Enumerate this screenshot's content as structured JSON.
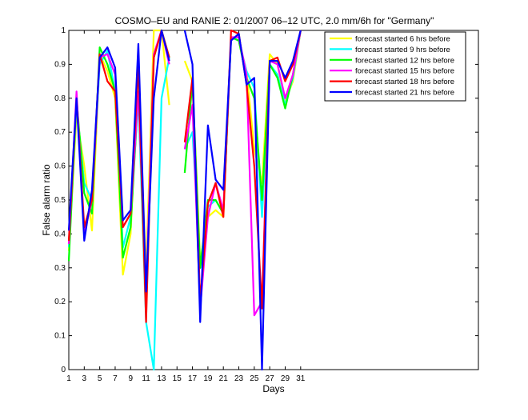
{
  "chart_data": {
    "type": "line",
    "title": "COSMO–EU and RANIE 2: 01/2007 06–12 UTC, 2.0 mm/6h for \"Germany\"",
    "xlabel": "Days",
    "ylabel": "False alarm ratio",
    "xlim": [
      1,
      54
    ],
    "ylim": [
      0,
      1
    ],
    "xticks": [
      1,
      3,
      5,
      7,
      9,
      11,
      13,
      15,
      17,
      19,
      21,
      23,
      25,
      27,
      29,
      31
    ],
    "yticks": [
      0,
      0.1,
      0.2,
      0.3,
      0.4,
      0.5,
      0.6,
      0.7,
      0.8,
      0.9,
      1
    ],
    "grid": false,
    "legend_position": "top-right",
    "series": [
      {
        "name": "forecast started 6 hrs before",
        "color": "#ffff00",
        "x": [
          1,
          2,
          3,
          4,
          5,
          6,
          7,
          8,
          9,
          10,
          11,
          12,
          13,
          14,
          16,
          17,
          18,
          19,
          20,
          21,
          22,
          23,
          24,
          25,
          26,
          27,
          28,
          29,
          30,
          31
        ],
        "y": [
          0.35,
          0.75,
          0.6,
          0.41,
          0.93,
          0.88,
          0.8,
          0.28,
          0.4,
          0.88,
          0.28,
          1.0,
          1.0,
          0.78,
          0.91,
          0.85,
          0.32,
          0.45,
          0.47,
          0.45,
          0.98,
          0.97,
          0.88,
          0.65,
          0.55,
          0.93,
          0.9,
          0.79,
          0.85,
          1.0
        ]
      },
      {
        "name": "forecast started 9 hrs before",
        "color": "#00ffff",
        "x": [
          1,
          2,
          3,
          4,
          5,
          6,
          7,
          8,
          9,
          10,
          11,
          12,
          13,
          14,
          16,
          17,
          18,
          19,
          20,
          21,
          22,
          23,
          24,
          25,
          26,
          27,
          28,
          29,
          30,
          31
        ],
        "y": [
          0.36,
          0.78,
          0.55,
          0.5,
          0.9,
          0.94,
          0.82,
          0.36,
          0.45,
          0.8,
          0.14,
          0.0,
          0.8,
          0.92,
          0.65,
          0.7,
          0.3,
          0.48,
          0.5,
          0.46,
          0.98,
          0.97,
          0.88,
          0.83,
          0.45,
          0.9,
          0.87,
          0.78,
          0.86,
          1.0
        ]
      },
      {
        "name": "forecast started 12 hrs before",
        "color": "#00ff00",
        "x": [
          1,
          2,
          3,
          4,
          5,
          6,
          7,
          8,
          9,
          10,
          11,
          12,
          13,
          14,
          16,
          17,
          18,
          19,
          20,
          21,
          22,
          23,
          24,
          25,
          26,
          27,
          28,
          29,
          30,
          31
        ],
        "y": [
          0.32,
          0.8,
          0.52,
          0.46,
          0.95,
          0.9,
          0.82,
          0.33,
          0.42,
          0.82,
          0.2,
          0.92,
          1.0,
          0.92,
          0.58,
          0.85,
          0.3,
          0.5,
          0.5,
          0.46,
          0.98,
          0.97,
          0.86,
          0.8,
          0.5,
          0.9,
          0.86,
          0.77,
          0.87,
          1.0
        ]
      },
      {
        "name": "forecast started 15 hrs before",
        "color": "#ff00ff",
        "x": [
          1,
          2,
          3,
          4,
          5,
          6,
          7,
          8,
          9,
          10,
          11,
          12,
          13,
          14,
          16,
          17,
          18,
          19,
          20,
          21,
          22,
          23,
          24,
          25,
          26,
          27,
          28,
          29,
          30,
          31
        ],
        "y": [
          0.37,
          0.82,
          0.4,
          0.5,
          0.92,
          0.93,
          0.87,
          0.42,
          0.46,
          0.82,
          0.22,
          0.93,
          1.0,
          0.9,
          0.65,
          0.78,
          0.18,
          0.45,
          0.55,
          0.47,
          0.98,
          0.98,
          0.87,
          0.16,
          0.2,
          0.91,
          0.9,
          0.8,
          0.87,
          1.0
        ]
      },
      {
        "name": "forecast started 18 hrs before",
        "color": "#ff0000",
        "x": [
          1,
          2,
          3,
          4,
          5,
          6,
          7,
          8,
          9,
          10,
          11,
          12,
          13,
          14,
          16,
          17,
          18,
          19,
          20,
          21,
          22,
          23,
          24,
          25,
          26,
          27,
          28,
          29,
          30,
          31
        ],
        "y": [
          0.38,
          0.8,
          0.42,
          0.5,
          0.93,
          0.85,
          0.82,
          0.42,
          0.46,
          0.9,
          0.14,
          0.92,
          1.0,
          0.92,
          0.67,
          0.86,
          0.2,
          0.49,
          0.55,
          0.45,
          1.0,
          0.99,
          0.84,
          0.6,
          0.18,
          0.91,
          0.92,
          0.85,
          0.9,
          1.0
        ]
      },
      {
        "name": "forecast started 21 hrs before",
        "color": "#0000ff",
        "x": [
          1,
          2,
          3,
          4,
          5,
          6,
          7,
          8,
          9,
          10,
          11,
          12,
          13,
          14,
          16,
          17,
          18,
          19,
          20,
          21,
          22,
          23,
          24,
          25,
          26,
          27,
          28,
          29,
          30,
          31
        ],
        "y": [
          0.41,
          0.8,
          0.38,
          0.53,
          0.92,
          0.95,
          0.89,
          0.44,
          0.47,
          0.96,
          0.23,
          0.8,
          1.0,
          0.91,
          1.0,
          0.9,
          0.14,
          0.72,
          0.56,
          0.53,
          0.97,
          0.99,
          0.84,
          0.86,
          0.0,
          0.91,
          0.91,
          0.86,
          0.91,
          1.0
        ]
      }
    ]
  }
}
